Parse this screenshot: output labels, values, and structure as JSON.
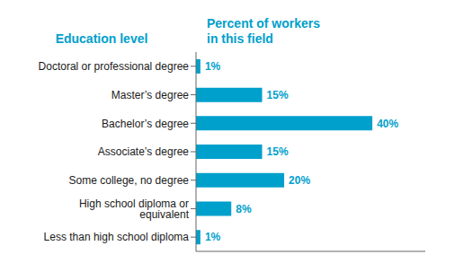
{
  "chart_data": {
    "type": "bar",
    "orientation": "horizontal",
    "ylabel": "Education level",
    "xlabel": "Percent of workers\nin this field",
    "categories": [
      "Doctoral or professional degree",
      "Master’s degree",
      "Bachelor’s degree",
      "Associate’s degree",
      "Some college, no degree",
      "High school diploma or equivalent",
      "Less than high school diploma"
    ],
    "values": [
      1,
      15,
      40,
      15,
      20,
      8,
      1
    ],
    "value_labels": [
      "1%",
      "15%",
      "40%",
      "15%",
      "20%",
      "8%",
      "1%"
    ],
    "data_labels": true,
    "color": "#00a0cc",
    "xlim": [
      0,
      52
    ],
    "tick_labels": "y",
    "grid": false
  }
}
